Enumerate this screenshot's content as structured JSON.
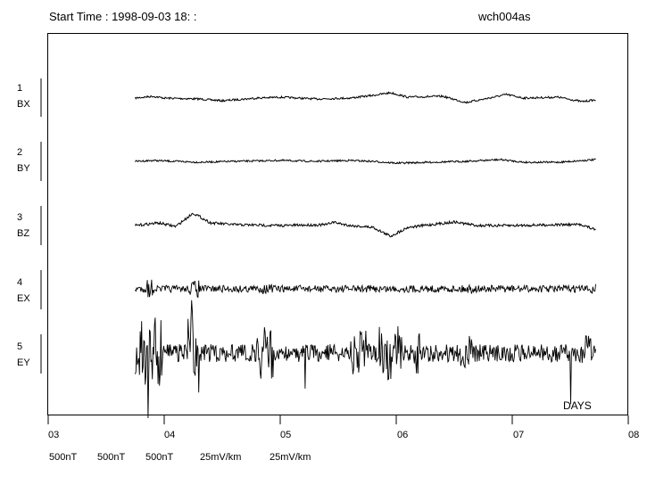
{
  "header": {
    "start_time": "Start Time : 1998-09-03 18:  :",
    "station": "wch004as"
  },
  "x_unit_label": "DAYS",
  "scale_legend": [
    "500nT",
    "500nT",
    "500nT",
    "25mV/km",
    "25mV/km"
  ],
  "chart_data": {
    "type": "line",
    "title": "Start Time : 1998-09-03 18:  :",
    "xlabel": "DAYS",
    "x_ticks": [
      "03",
      "04",
      "05",
      "06",
      "07",
      "08"
    ],
    "xlim": [
      3,
      8
    ],
    "data_start_day": 3.75,
    "data_end_day": 7.72,
    "series": [
      {
        "index": "1",
        "name": "BX",
        "scale": "500nT",
        "shape": [
          [
            3.75,
            0
          ],
          [
            3.9,
            2
          ],
          [
            4.0,
            0
          ],
          [
            4.3,
            -1
          ],
          [
            4.5,
            -3
          ],
          [
            4.8,
            0
          ],
          [
            5.0,
            1
          ],
          [
            5.3,
            -1
          ],
          [
            5.6,
            0
          ],
          [
            5.8,
            3
          ],
          [
            5.95,
            6
          ],
          [
            6.1,
            1
          ],
          [
            6.4,
            2
          ],
          [
            6.6,
            -5
          ],
          [
            6.8,
            0
          ],
          [
            6.95,
            4
          ],
          [
            7.1,
            0
          ],
          [
            7.4,
            1
          ],
          [
            7.6,
            -4
          ],
          [
            7.72,
            -2
          ]
        ]
      },
      {
        "index": "2",
        "name": "BY",
        "scale": "500nT",
        "shape": [
          [
            3.75,
            0
          ],
          [
            3.9,
            1
          ],
          [
            4.1,
            0
          ],
          [
            4.3,
            -1
          ],
          [
            4.6,
            0
          ],
          [
            5.0,
            1
          ],
          [
            5.3,
            0
          ],
          [
            5.6,
            1
          ],
          [
            5.8,
            0
          ],
          [
            6.0,
            -2
          ],
          [
            6.3,
            -1
          ],
          [
            6.6,
            0
          ],
          [
            6.9,
            2
          ],
          [
            7.1,
            -1
          ],
          [
            7.4,
            -1
          ],
          [
            7.72,
            2
          ]
        ]
      },
      {
        "index": "3",
        "name": "BZ",
        "scale": "500nT",
        "shape": [
          [
            3.75,
            0
          ],
          [
            3.95,
            3
          ],
          [
            4.1,
            -1
          ],
          [
            4.25,
            14
          ],
          [
            4.4,
            3
          ],
          [
            4.6,
            1
          ],
          [
            5.0,
            0
          ],
          [
            5.4,
            1
          ],
          [
            5.45,
            4
          ],
          [
            5.6,
            0
          ],
          [
            5.8,
            -2
          ],
          [
            5.95,
            -12
          ],
          [
            6.1,
            -2
          ],
          [
            6.3,
            1
          ],
          [
            6.5,
            4
          ],
          [
            6.7,
            0
          ],
          [
            7.0,
            0
          ],
          [
            7.4,
            1
          ],
          [
            7.6,
            1
          ],
          [
            7.72,
            -5
          ]
        ]
      },
      {
        "index": "4",
        "name": "EX",
        "scale": "25mV/km",
        "shape": [
          [
            3.75,
            0
          ],
          [
            7.72,
            0
          ]
        ]
      },
      {
        "index": "5",
        "name": "EY",
        "scale": "25mV/km",
        "shape": [
          [
            3.75,
            0
          ],
          [
            7.72,
            0
          ]
        ]
      }
    ]
  }
}
